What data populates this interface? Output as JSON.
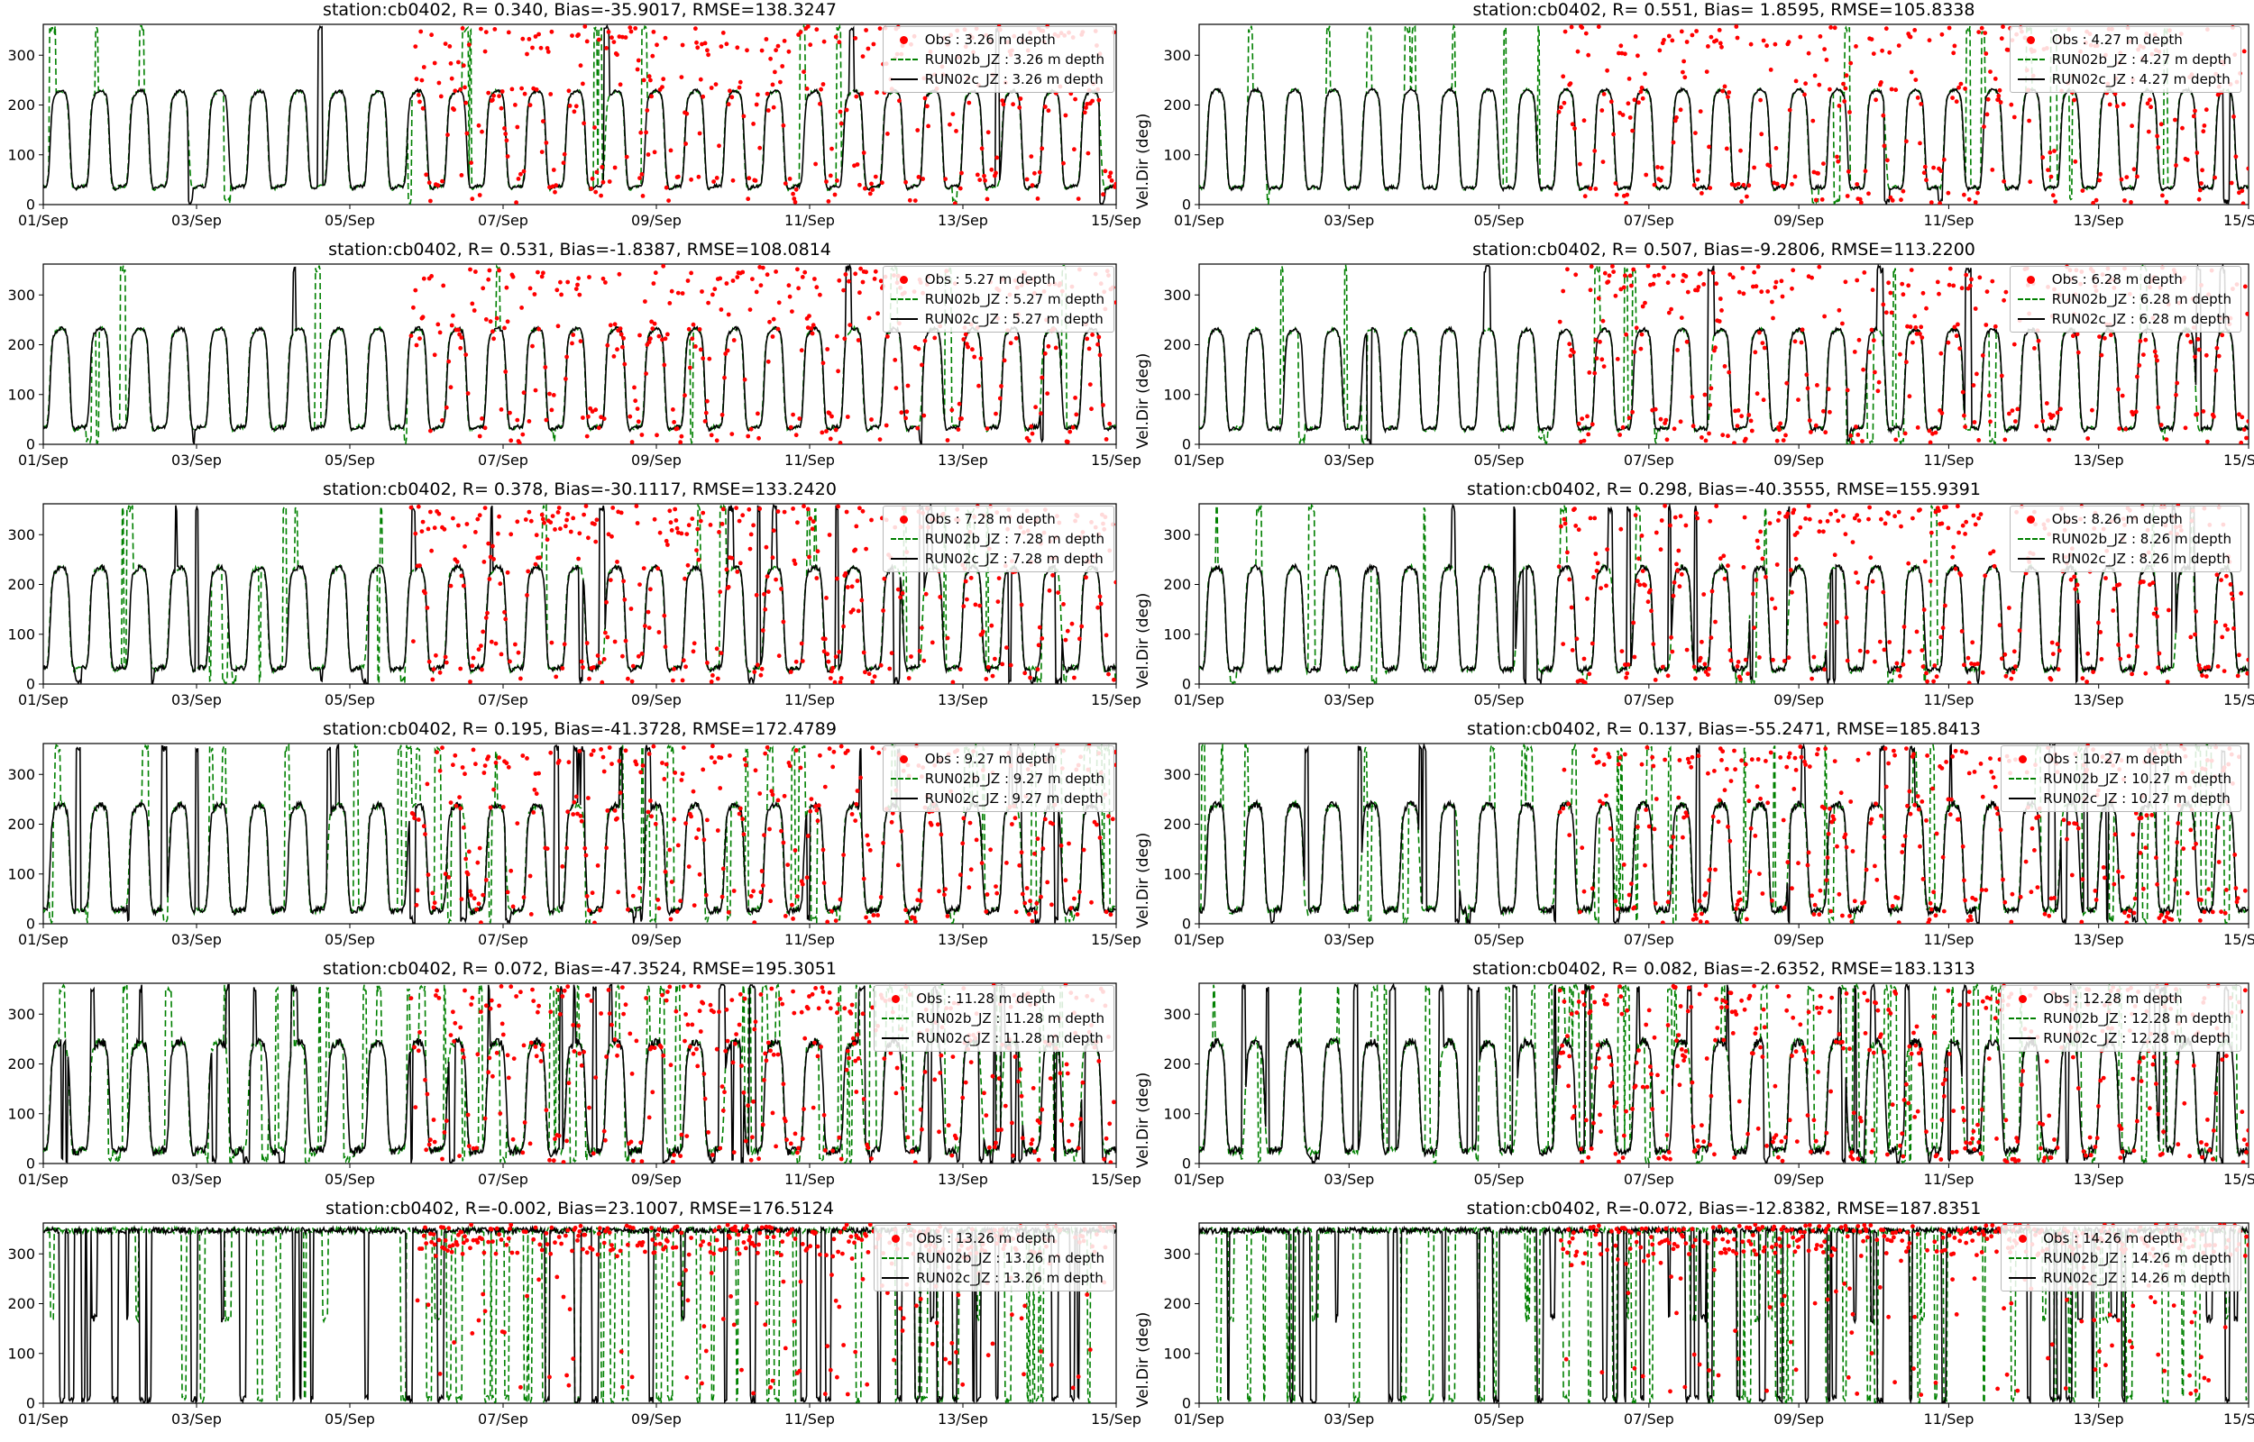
{
  "figure": {
    "station": "cb0402",
    "ylabel": "Vel.Dir (deg)",
    "x_ticks": [
      "01/Sep",
      "03/Sep",
      "05/Sep",
      "07/Sep",
      "09/Sep",
      "11/Sep",
      "13/Sep",
      "15/Sep"
    ],
    "x_range_days": 14,
    "y_ticks": [
      0,
      100,
      200,
      300
    ],
    "ylim": [
      0,
      362
    ],
    "grid_lines": false,
    "legend_position": "upper right",
    "layout": {
      "rows": 6,
      "cols": 2
    },
    "colors": {
      "obs": "#ff0000",
      "run02b": "#008000",
      "run02c": "#000000",
      "legend_border": "#b7b7b7"
    }
  },
  "chart_data": [
    {
      "type": "line+scatter",
      "title": "station:cb0402, R= 0.340, Bias=-35.9017, RMSE=138.3247",
      "depth_m": 3.26,
      "stats": {
        "R": 0.34,
        "Bias": -35.9017,
        "RMSE": 138.3247
      },
      "legend": [
        "Obs : 3.26 m depth",
        "RUN02b_JZ : 3.26 m depth",
        "RUN02c_JZ : 3.26 m depth"
      ],
      "series": [
        {
          "name": "Obs",
          "style": "scatter",
          "color": "#ff0000"
        },
        {
          "name": "RUN02b_JZ",
          "style": "dashed-line",
          "color": "#008000"
        },
        {
          "name": "RUN02c_JZ",
          "style": "solid-line",
          "color": "#000000"
        }
      ],
      "gen": {
        "pattern": "square",
        "low": 32,
        "high": 224,
        "noise": 6,
        "spike_black": 0.004,
        "spike_green": 0.011,
        "obs_start": 4.8,
        "phase": -1.1
      }
    },
    {
      "type": "line+scatter",
      "title": "station:cb0402, R= 0.551, Bias= 1.8595, RMSE=105.8338",
      "depth_m": 4.27,
      "stats": {
        "R": 0.551,
        "Bias": 1.8595,
        "RMSE": 105.8338
      },
      "legend": [
        "Obs : 4.27 m depth",
        "RUN02b_JZ : 4.27 m depth",
        "RUN02c_JZ : 4.27 m depth"
      ],
      "series": [
        {
          "name": "Obs",
          "style": "scatter",
          "color": "#ff0000"
        },
        {
          "name": "RUN02b_JZ",
          "style": "dashed-line",
          "color": "#008000"
        },
        {
          "name": "RUN02c_JZ",
          "style": "solid-line",
          "color": "#000000"
        }
      ],
      "gen": {
        "pattern": "square",
        "low": 30,
        "high": 226,
        "noise": 6,
        "spike_black": 0.004,
        "spike_green": 0.01,
        "obs_start": 4.8,
        "phase": -1.3
      }
    },
    {
      "type": "line+scatter",
      "title": "station:cb0402, R= 0.531, Bias=-1.8387, RMSE=108.0814",
      "depth_m": 5.27,
      "stats": {
        "R": 0.531,
        "Bias": -1.8387,
        "RMSE": 108.0814
      },
      "legend": [
        "Obs : 5.27 m depth",
        "RUN02b_JZ : 5.27 m depth",
        "RUN02c_JZ : 5.27 m depth"
      ],
      "series": [
        {
          "name": "Obs",
          "style": "scatter",
          "color": "#ff0000"
        },
        {
          "name": "RUN02b_JZ",
          "style": "dashed-line",
          "color": "#008000"
        },
        {
          "name": "RUN02c_JZ",
          "style": "solid-line",
          "color": "#000000"
        }
      ],
      "gen": {
        "pattern": "square",
        "low": 30,
        "high": 228,
        "noise": 7,
        "spike_black": 0.006,
        "spike_green": 0.013,
        "obs_start": 4.8,
        "phase": -1.1
      }
    },
    {
      "type": "line+scatter",
      "title": "station:cb0402, R= 0.507, Bias=-9.2806, RMSE=113.2200",
      "depth_m": 6.28,
      "stats": {
        "R": 0.507,
        "Bias": -9.2806,
        "RMSE": 113.22
      },
      "legend": [
        "Obs : 6.28 m depth",
        "RUN02b_JZ : 6.28 m depth",
        "RUN02c_JZ : 6.28 m depth"
      ],
      "series": [
        {
          "name": "Obs",
          "style": "scatter",
          "color": "#ff0000"
        },
        {
          "name": "RUN02b_JZ",
          "style": "dashed-line",
          "color": "#008000"
        },
        {
          "name": "RUN02c_JZ",
          "style": "solid-line",
          "color": "#000000"
        }
      ],
      "gen": {
        "pattern": "square",
        "low": 28,
        "high": 226,
        "noise": 7,
        "spike_black": 0.007,
        "spike_green": 0.014,
        "obs_start": 4.8,
        "phase": -1.2
      }
    },
    {
      "type": "line+scatter",
      "title": "station:cb0402, R= 0.378, Bias=-30.1117, RMSE=133.2420",
      "depth_m": 7.28,
      "stats": {
        "R": 0.378,
        "Bias": -30.1117,
        "RMSE": 133.242
      },
      "legend": [
        "Obs : 7.28 m depth",
        "RUN02b_JZ : 7.28 m depth",
        "RUN02c_JZ : 7.28 m depth"
      ],
      "series": [
        {
          "name": "Obs",
          "style": "scatter",
          "color": "#ff0000"
        },
        {
          "name": "RUN02b_JZ",
          "style": "dashed-line",
          "color": "#008000"
        },
        {
          "name": "RUN02c_JZ",
          "style": "solid-line",
          "color": "#000000"
        }
      ],
      "gen": {
        "pattern": "square",
        "low": 28,
        "high": 230,
        "noise": 9,
        "spike_black": 0.012,
        "spike_green": 0.022,
        "obs_start": 4.8,
        "phase": -1.1
      }
    },
    {
      "type": "line+scatter",
      "title": "station:cb0402, R= 0.298, Bias=-40.3555, RMSE=155.9391",
      "depth_m": 8.26,
      "stats": {
        "R": 0.298,
        "Bias": -40.3555,
        "RMSE": 155.9391
      },
      "legend": [
        "Obs : 8.26 m depth",
        "RUN02b_JZ : 8.26 m depth",
        "RUN02c_JZ : 8.26 m depth"
      ],
      "series": [
        {
          "name": "Obs",
          "style": "scatter",
          "color": "#ff0000"
        },
        {
          "name": "RUN02b_JZ",
          "style": "dashed-line",
          "color": "#008000"
        },
        {
          "name": "RUN02c_JZ",
          "style": "solid-line",
          "color": "#000000"
        }
      ],
      "gen": {
        "pattern": "square",
        "low": 26,
        "high": 230,
        "noise": 10,
        "spike_black": 0.014,
        "spike_green": 0.024,
        "obs_start": 4.8,
        "phase": -1.2
      }
    },
    {
      "type": "line+scatter",
      "title": "station:cb0402, R= 0.195, Bias=-41.3728, RMSE=172.4789",
      "depth_m": 9.27,
      "stats": {
        "R": 0.195,
        "Bias": -41.3728,
        "RMSE": 172.4789
      },
      "legend": [
        "Obs : 9.27 m depth",
        "RUN02b_JZ : 9.27 m depth",
        "RUN02c_JZ : 9.27 m depth"
      ],
      "series": [
        {
          "name": "Obs",
          "style": "scatter",
          "color": "#ff0000"
        },
        {
          "name": "RUN02b_JZ",
          "style": "dashed-line",
          "color": "#008000"
        },
        {
          "name": "RUN02c_JZ",
          "style": "solid-line",
          "color": "#000000"
        }
      ],
      "gen": {
        "pattern": "square",
        "low": 24,
        "high": 234,
        "noise": 12,
        "spike_black": 0.02,
        "spike_green": 0.032,
        "obs_start": 4.8,
        "phase": -1.1
      }
    },
    {
      "type": "line+scatter",
      "title": "station:cb0402, R= 0.137, Bias=-55.2471, RMSE=185.8413",
      "depth_m": 10.27,
      "stats": {
        "R": 0.137,
        "Bias": -55.2471,
        "RMSE": 185.8413
      },
      "legend": [
        "Obs : 10.27 m depth",
        "RUN02b_JZ : 10.27 m depth",
        "RUN02c_JZ : 10.27 m depth"
      ],
      "series": [
        {
          "name": "Obs",
          "style": "scatter",
          "color": "#ff0000"
        },
        {
          "name": "RUN02b_JZ",
          "style": "dashed-line",
          "color": "#008000"
        },
        {
          "name": "RUN02c_JZ",
          "style": "solid-line",
          "color": "#000000"
        }
      ],
      "gen": {
        "pattern": "square",
        "low": 24,
        "high": 236,
        "noise": 13,
        "spike_black": 0.024,
        "spike_green": 0.036,
        "obs_start": 4.8,
        "phase": -1.2
      }
    },
    {
      "type": "line+scatter",
      "title": "station:cb0402, R= 0.072, Bias=-47.3524, RMSE=195.3051",
      "depth_m": 11.28,
      "stats": {
        "R": 0.072,
        "Bias": -47.3524,
        "RMSE": 195.3051
      },
      "legend": [
        "Obs : 11.28 m depth",
        "RUN02b_JZ : 11.28 m depth",
        "RUN02c_JZ : 11.28 m depth"
      ],
      "series": [
        {
          "name": "Obs",
          "style": "scatter",
          "color": "#ff0000"
        },
        {
          "name": "RUN02b_JZ",
          "style": "dashed-line",
          "color": "#008000"
        },
        {
          "name": "RUN02c_JZ",
          "style": "solid-line",
          "color": "#000000"
        }
      ],
      "gen": {
        "pattern": "square",
        "low": 22,
        "high": 240,
        "noise": 16,
        "spike_black": 0.038,
        "spike_green": 0.058,
        "obs_start": 4.8,
        "phase": -1.1
      }
    },
    {
      "type": "line+scatter",
      "title": "station:cb0402, R= 0.082, Bias=-2.6352, RMSE=183.1313",
      "depth_m": 12.28,
      "stats": {
        "R": 0.082,
        "Bias": -2.6352,
        "RMSE": 183.1313
      },
      "legend": [
        "Obs : 12.28 m depth",
        "RUN02b_JZ : 12.28 m depth",
        "RUN02c_JZ : 12.28 m depth"
      ],
      "series": [
        {
          "name": "Obs",
          "style": "scatter",
          "color": "#ff0000"
        },
        {
          "name": "RUN02b_JZ",
          "style": "dashed-line",
          "color": "#008000"
        },
        {
          "name": "RUN02c_JZ",
          "style": "solid-line",
          "color": "#000000"
        }
      ],
      "gen": {
        "pattern": "square",
        "low": 22,
        "high": 240,
        "noise": 16,
        "spike_black": 0.038,
        "spike_green": 0.06,
        "obs_start": 4.8,
        "phase": -1.2
      }
    },
    {
      "type": "line+scatter",
      "title": "station:cb0402, R=-0.002, Bias=23.1007, RMSE=176.5124",
      "depth_m": 13.26,
      "stats": {
        "R": -0.002,
        "Bias": 23.1007,
        "RMSE": 176.5124
      },
      "legend": [
        "Obs : 13.26 m depth",
        "RUN02b_JZ : 13.26 m depth",
        "RUN02c_JZ : 13.26 m depth"
      ],
      "series": [
        {
          "name": "Obs",
          "style": "scatter",
          "color": "#ff0000"
        },
        {
          "name": "RUN02b_JZ",
          "style": "dashed-line",
          "color": "#008000"
        },
        {
          "name": "RUN02c_JZ",
          "style": "solid-line",
          "color": "#000000"
        }
      ],
      "gen": {
        "pattern": "top",
        "low": 20,
        "high": 330,
        "noise": 10,
        "spike_black": 0.04,
        "spike_green": 0.055,
        "obs_start": 4.8,
        "phase": -1.1
      }
    },
    {
      "type": "line+scatter",
      "title": "station:cb0402, R=-0.072, Bias=-12.8382, RMSE=187.8351",
      "depth_m": 14.26,
      "stats": {
        "R": -0.072,
        "Bias": -12.8382,
        "RMSE": 187.8351
      },
      "legend": [
        "Obs : 14.26 m depth",
        "RUN02b_JZ : 14.26 m depth",
        "RUN02c_JZ : 14.26 m depth"
      ],
      "series": [
        {
          "name": "Obs",
          "style": "scatter",
          "color": "#ff0000"
        },
        {
          "name": "RUN02b_JZ",
          "style": "dashed-line",
          "color": "#008000"
        },
        {
          "name": "RUN02c_JZ",
          "style": "solid-line",
          "color": "#000000"
        }
      ],
      "gen": {
        "pattern": "top",
        "low": 20,
        "high": 330,
        "noise": 10,
        "spike_black": 0.045,
        "spike_green": 0.06,
        "obs_start": 4.8,
        "phase": -1.2
      }
    }
  ]
}
